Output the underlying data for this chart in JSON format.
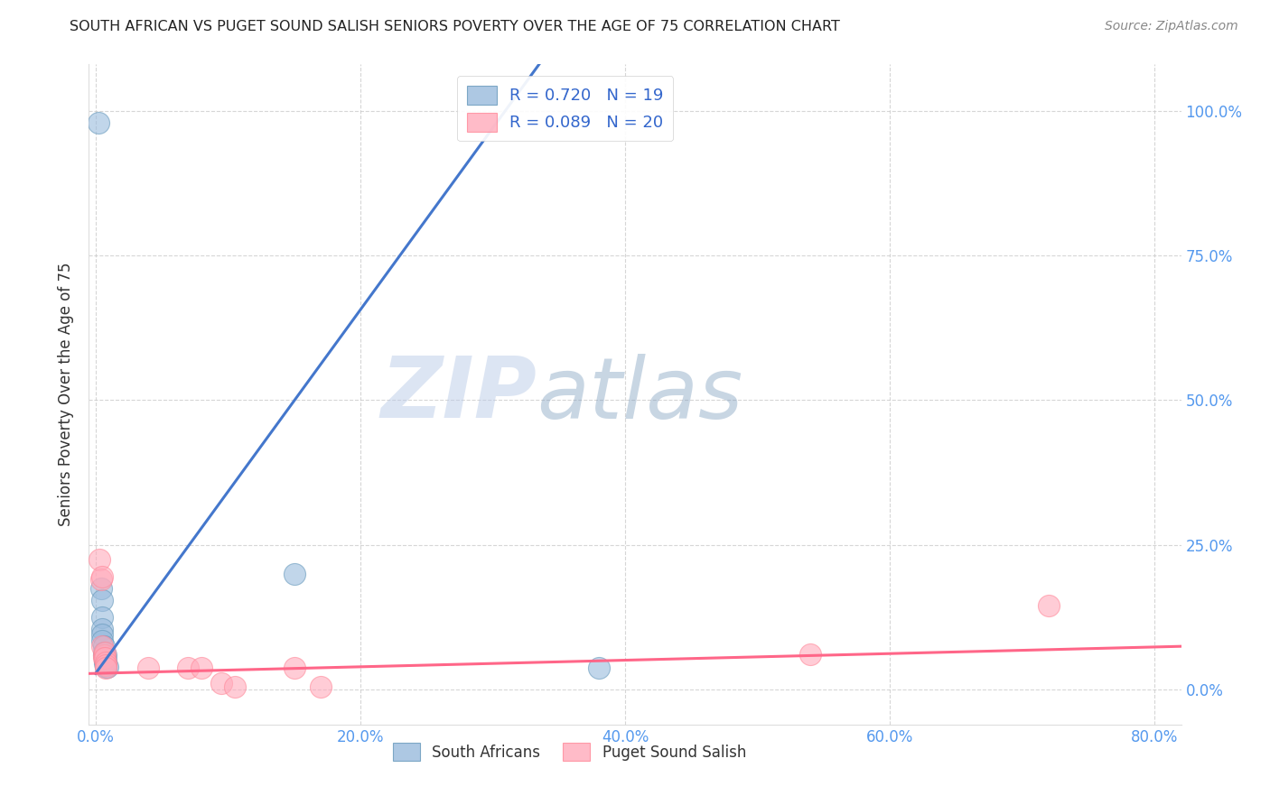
{
  "title": "SOUTH AFRICAN VS PUGET SOUND SALISH SENIORS POVERTY OVER THE AGE OF 75 CORRELATION CHART",
  "source": "Source: ZipAtlas.com",
  "ylabel": "Seniors Poverty Over the Age of 75",
  "xlabel_ticks": [
    "0.0%",
    "20.0%",
    "40.0%",
    "60.0%",
    "80.0%"
  ],
  "xlabel_vals": [
    0.0,
    0.2,
    0.4,
    0.6,
    0.8
  ],
  "ylabel_ticks": [
    "0.0%",
    "25.0%",
    "50.0%",
    "75.0%",
    "100.0%"
  ],
  "ylabel_vals": [
    0.0,
    0.25,
    0.5,
    0.75,
    1.0
  ],
  "xlim": [
    -0.005,
    0.82
  ],
  "ylim": [
    -0.06,
    1.08
  ],
  "watermark_zip": "ZIP",
  "watermark_atlas": "atlas",
  "blue_R": 0.72,
  "blue_N": 19,
  "pink_R": 0.089,
  "pink_N": 20,
  "blue_color": "#99BBDD",
  "pink_color": "#FFAABB",
  "blue_edge_color": "#6699BB",
  "pink_edge_color": "#FF8899",
  "blue_line_color": "#4477CC",
  "pink_line_color": "#FF6688",
  "title_color": "#222222",
  "axis_tick_color": "#5599EE",
  "legend_R_color": "#3366CC",
  "ylabel_color": "#333333",
  "source_color": "#888888",
  "grid_color": "#CCCCCC",
  "blue_line_x0": 0.0,
  "blue_line_y0": 0.028,
  "blue_line_x1": 0.335,
  "blue_line_y1": 1.08,
  "pink_line_x0": -0.005,
  "pink_line_y0": 0.028,
  "pink_line_x1": 0.82,
  "pink_line_y1": 0.075,
  "blue_scatter": [
    [
      0.002,
      0.98
    ],
    [
      0.004,
      0.175
    ],
    [
      0.005,
      0.155
    ],
    [
      0.005,
      0.125
    ],
    [
      0.005,
      0.105
    ],
    [
      0.005,
      0.095
    ],
    [
      0.005,
      0.085
    ],
    [
      0.006,
      0.075
    ],
    [
      0.006,
      0.065
    ],
    [
      0.006,
      0.06
    ],
    [
      0.007,
      0.055
    ],
    [
      0.007,
      0.05
    ],
    [
      0.007,
      0.045
    ],
    [
      0.008,
      0.06
    ],
    [
      0.008,
      0.05
    ],
    [
      0.008,
      0.04
    ],
    [
      0.009,
      0.04
    ],
    [
      0.15,
      0.2
    ],
    [
      0.38,
      0.038
    ]
  ],
  "pink_scatter": [
    [
      0.003,
      0.225
    ],
    [
      0.004,
      0.19
    ],
    [
      0.005,
      0.195
    ],
    [
      0.005,
      0.075
    ],
    [
      0.006,
      0.06
    ],
    [
      0.006,
      0.055
    ],
    [
      0.007,
      0.065
    ],
    [
      0.007,
      0.055
    ],
    [
      0.008,
      0.048
    ],
    [
      0.008,
      0.042
    ],
    [
      0.008,
      0.038
    ],
    [
      0.04,
      0.038
    ],
    [
      0.07,
      0.038
    ],
    [
      0.08,
      0.038
    ],
    [
      0.095,
      0.012
    ],
    [
      0.105,
      0.005
    ],
    [
      0.15,
      0.038
    ],
    [
      0.17,
      0.005
    ],
    [
      0.54,
      0.062
    ],
    [
      0.72,
      0.145
    ]
  ]
}
